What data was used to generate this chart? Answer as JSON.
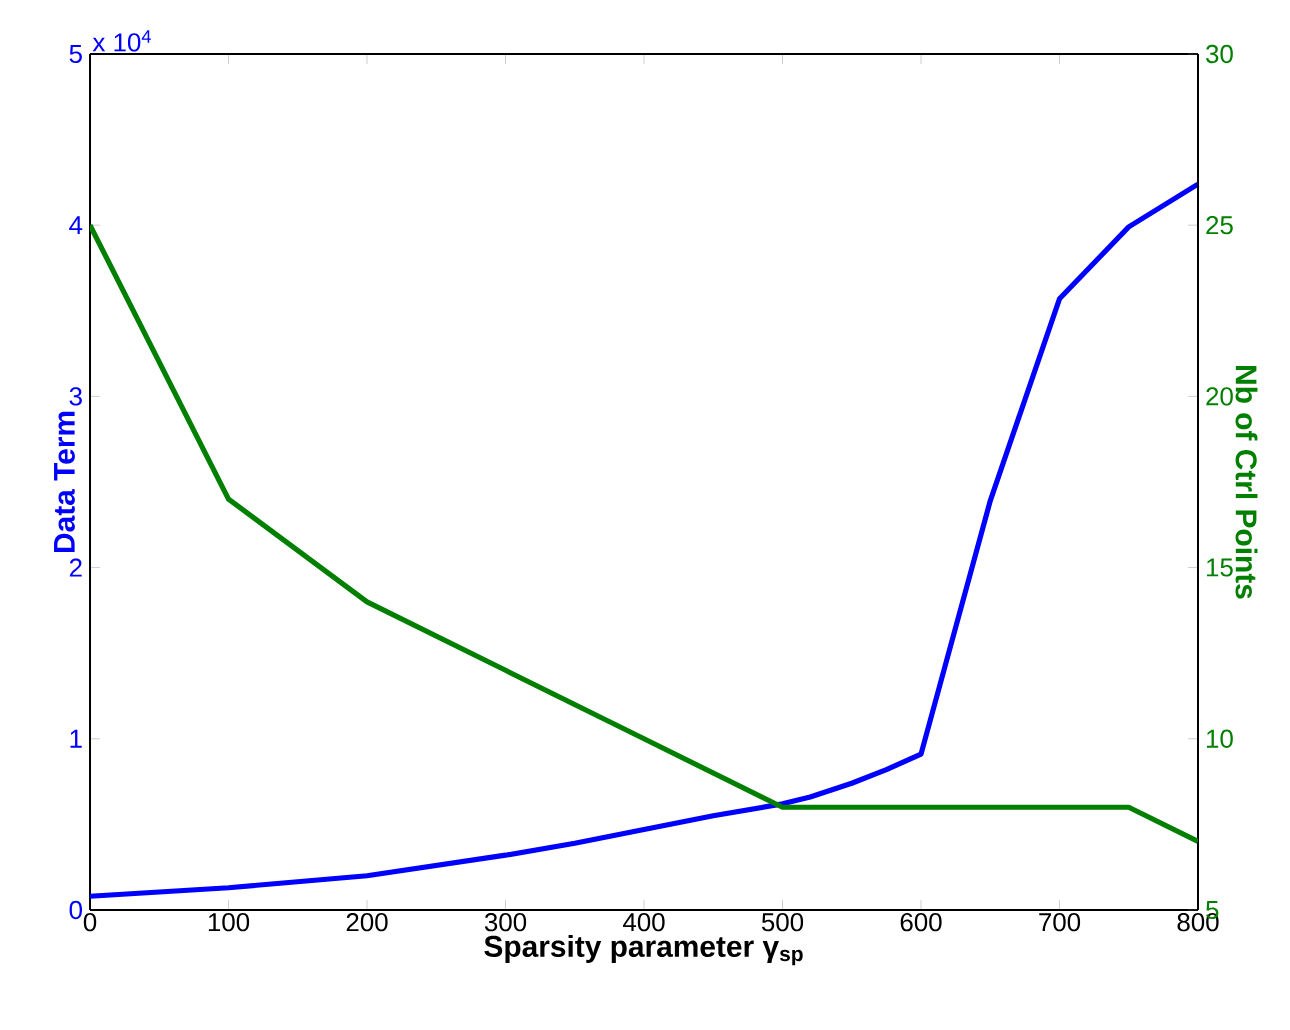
{
  "chart_data": {
    "type": "line",
    "xlabel": "Sparsity parameter γ$_{sp}$",
    "ylabel": "Data Term",
    "y2label": "Nb of Ctrl Points",
    "annotations": [
      "x 10$^{4}$"
    ],
    "xlim": [
      0,
      800
    ],
    "xticks": [
      0,
      100,
      200,
      300,
      400,
      500,
      600,
      700,
      800
    ],
    "ylim": [
      0,
      5
    ],
    "yticks": [
      0,
      1,
      2,
      3,
      4,
      5
    ],
    "y2lim": [
      5,
      30
    ],
    "y2ticks": [
      5,
      10,
      15,
      20,
      25,
      30
    ],
    "series": [
      {
        "color": "#0000ff",
        "x": [
          0,
          100,
          200,
          300,
          350,
          400,
          450,
          500,
          520,
          550,
          575,
          600,
          650,
          700,
          750,
          800
        ],
        "values": [
          0.08,
          0.13,
          0.2,
          0.32,
          0.39,
          0.47,
          0.55,
          0.62,
          0.66,
          0.74,
          0.82,
          0.91,
          2.39,
          3.57,
          3.99,
          4.24
        ]
      },
      {
        "color": "#007f00",
        "axis": "y2",
        "x": [
          0,
          100,
          200,
          300,
          400,
          500,
          750,
          800
        ],
        "values": [
          25,
          17,
          14,
          12,
          10,
          8,
          8,
          7
        ]
      }
    ]
  }
}
